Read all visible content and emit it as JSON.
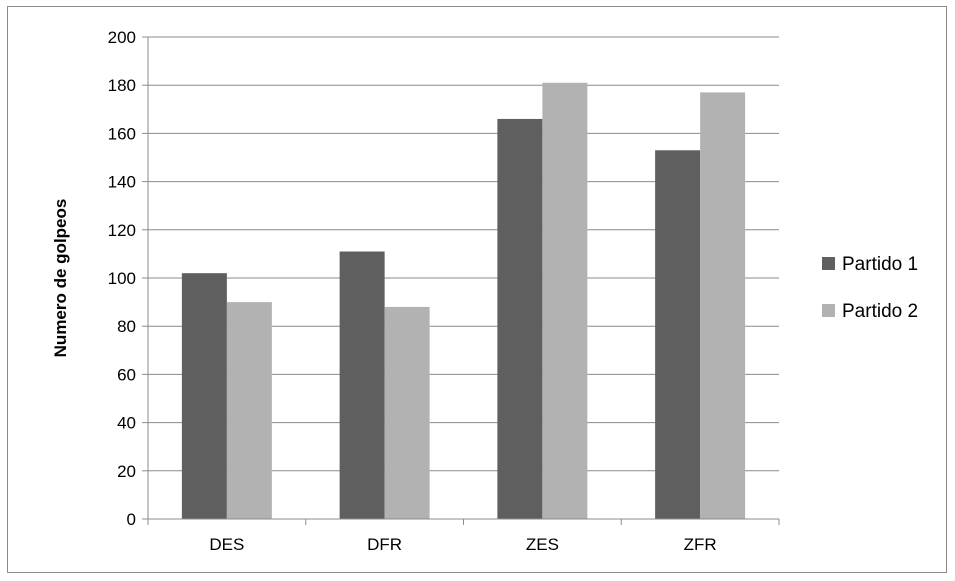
{
  "chart_data": {
    "type": "bar",
    "title": "",
    "xlabel": "",
    "ylabel": "Numero de golpeos",
    "categories": [
      "DES",
      "DFR",
      "ZES",
      "ZFR"
    ],
    "series": [
      {
        "name": "Partido 1",
        "values": [
          102,
          111,
          166,
          153
        ],
        "color": "#5f5f5f"
      },
      {
        "name": "Partido 2",
        "values": [
          90,
          88,
          181,
          177
        ],
        "color": "#b2b2b2"
      }
    ],
    "ylim": [
      0,
      200
    ],
    "yticks": [
      0,
      20,
      40,
      60,
      80,
      100,
      120,
      140,
      160,
      180,
      200
    ],
    "grid": true,
    "legend_position": "right"
  }
}
